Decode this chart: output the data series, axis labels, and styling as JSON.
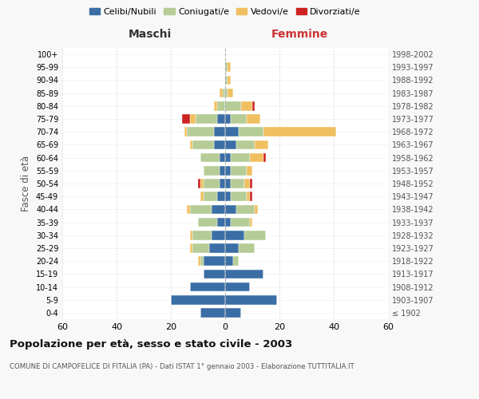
{
  "age_groups": [
    "100+",
    "95-99",
    "90-94",
    "85-89",
    "80-84",
    "75-79",
    "70-74",
    "65-69",
    "60-64",
    "55-59",
    "50-54",
    "45-49",
    "40-44",
    "35-39",
    "30-34",
    "25-29",
    "20-24",
    "15-19",
    "10-14",
    "5-9",
    "0-4"
  ],
  "birth_years": [
    "≤ 1902",
    "1903-1907",
    "1908-1912",
    "1913-1917",
    "1918-1922",
    "1923-1927",
    "1928-1932",
    "1933-1937",
    "1938-1942",
    "1943-1947",
    "1948-1952",
    "1953-1957",
    "1958-1962",
    "1963-1967",
    "1968-1972",
    "1973-1977",
    "1978-1982",
    "1983-1987",
    "1988-1992",
    "1993-1997",
    "1998-2002"
  ],
  "maschi": {
    "celibi": [
      0,
      0,
      0,
      0,
      0,
      3,
      4,
      4,
      2,
      2,
      2,
      3,
      5,
      3,
      5,
      6,
      8,
      8,
      13,
      20,
      9
    ],
    "coniugati": [
      0,
      0,
      0,
      1,
      3,
      8,
      10,
      8,
      7,
      6,
      6,
      5,
      8,
      7,
      7,
      6,
      1,
      0,
      0,
      0,
      0
    ],
    "vedovi": [
      0,
      0,
      0,
      1,
      1,
      2,
      1,
      1,
      0,
      0,
      1,
      1,
      1,
      0,
      1,
      1,
      1,
      0,
      0,
      0,
      0
    ],
    "divorziati": [
      0,
      0,
      0,
      0,
      0,
      3,
      0,
      0,
      0,
      0,
      1,
      0,
      0,
      0,
      0,
      0,
      0,
      0,
      0,
      0,
      0
    ]
  },
  "femmine": {
    "nubili": [
      0,
      0,
      0,
      0,
      0,
      2,
      5,
      4,
      2,
      2,
      2,
      2,
      4,
      2,
      7,
      5,
      3,
      14,
      9,
      19,
      6
    ],
    "coniugate": [
      0,
      1,
      1,
      1,
      6,
      6,
      9,
      7,
      7,
      6,
      5,
      6,
      7,
      7,
      8,
      6,
      2,
      0,
      0,
      0,
      0
    ],
    "vedove": [
      0,
      1,
      1,
      2,
      4,
      5,
      27,
      5,
      5,
      2,
      2,
      1,
      1,
      1,
      0,
      0,
      0,
      0,
      0,
      0,
      0
    ],
    "divorziate": [
      0,
      0,
      0,
      0,
      1,
      0,
      0,
      0,
      1,
      0,
      1,
      1,
      0,
      0,
      0,
      0,
      0,
      0,
      0,
      0,
      0
    ]
  },
  "colors": {
    "celibi": "#3a6ea5",
    "coniugati": "#b5cc96",
    "vedovi": "#f0c060",
    "divorziati": "#cc2222"
  },
  "xlim": 60,
  "title": "Popolazione per età, sesso e stato civile - 2003",
  "subtitle": "COMUNE DI CAMPOFELICE DI FITALIA (PA) - Dati ISTAT 1° gennaio 2003 - Elaborazione TUTTITALIA.IT",
  "ylabel_left": "Fasce di età",
  "xlabel_left": "Maschi",
  "xlabel_right": "Femmine",
  "legend_labels": [
    "Celibi/Nubili",
    "Coniugati/e",
    "Vedovi/e",
    "Divorziati/e"
  ],
  "bg_color": "#f8f8f8",
  "plot_bg": "#ffffff"
}
